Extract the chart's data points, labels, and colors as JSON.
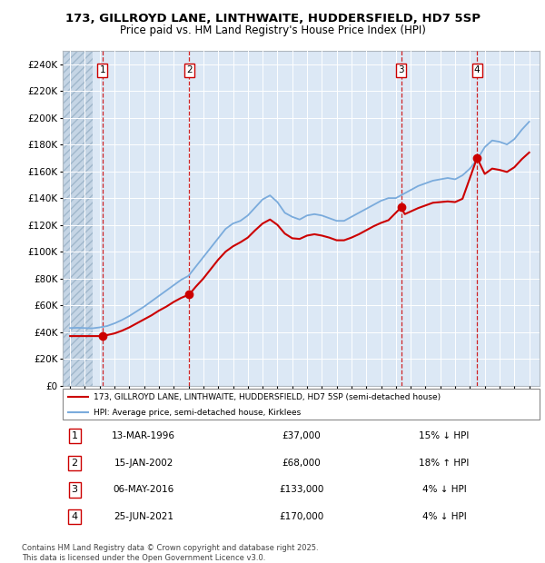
{
  "title_line1": "173, GILLROYD LANE, LINTHWAITE, HUDDERSFIELD, HD7 5SP",
  "title_line2": "Price paid vs. HM Land Registry's House Price Index (HPI)",
  "background_color": "#ffffff",
  "plot_bg_color": "#dce8f5",
  "hatch_bg_color": "#c5d5e5",
  "grid_color": "#ffffff",
  "sale_color": "#cc0000",
  "hpi_color": "#7aabdc",
  "sale_points": [
    {
      "year": 1996.19,
      "price": 37000,
      "label": "1"
    },
    {
      "year": 2002.04,
      "price": 68000,
      "label": "2"
    },
    {
      "year": 2016.35,
      "price": 133000,
      "label": "3"
    },
    {
      "year": 2021.48,
      "price": 170000,
      "label": "4"
    }
  ],
  "xmin": 1993.5,
  "xmax": 2025.7,
  "ymin": 0,
  "ymax": 250000,
  "yticks": [
    0,
    20000,
    40000,
    60000,
    80000,
    100000,
    120000,
    140000,
    160000,
    180000,
    200000,
    220000,
    240000
  ],
  "xticks": [
    1994,
    1995,
    1996,
    1997,
    1998,
    1999,
    2000,
    2001,
    2002,
    2003,
    2004,
    2005,
    2006,
    2007,
    2008,
    2009,
    2010,
    2011,
    2012,
    2013,
    2014,
    2015,
    2016,
    2017,
    2018,
    2019,
    2020,
    2021,
    2022,
    2023,
    2024,
    2025
  ],
  "legend_sale_label": "173, GILLROYD LANE, LINTHWAITE, HUDDERSFIELD, HD7 5SP (semi-detached house)",
  "legend_hpi_label": "HPI: Average price, semi-detached house, Kirklees",
  "table_rows": [
    {
      "num": "1",
      "date": "13-MAR-1996",
      "price": "£37,000",
      "pct": "15% ↓ HPI"
    },
    {
      "num": "2",
      "date": "15-JAN-2002",
      "price": "£68,000",
      "pct": "18% ↑ HPI"
    },
    {
      "num": "3",
      "date": "06-MAY-2016",
      "price": "£133,000",
      "pct": "4% ↓ HPI"
    },
    {
      "num": "4",
      "date": "25-JUN-2021",
      "price": "£170,000",
      "pct": "4% ↓ HPI"
    }
  ],
  "footer": "Contains HM Land Registry data © Crown copyright and database right 2025.\nThis data is licensed under the Open Government Licence v3.0.",
  "hatch_end_year": 1995.5,
  "hpi_years": [
    1994,
    1994.5,
    1995,
    1995.5,
    1996,
    1996.5,
    1997,
    1997.5,
    1998,
    1998.5,
    1999,
    1999.5,
    2000,
    2000.5,
    2001,
    2001.5,
    2002,
    2002.5,
    2003,
    2003.5,
    2004,
    2004.5,
    2005,
    2005.5,
    2006,
    2006.5,
    2007,
    2007.5,
    2008,
    2008.5,
    2009,
    2009.5,
    2010,
    2010.5,
    2011,
    2011.5,
    2012,
    2012.5,
    2013,
    2013.5,
    2014,
    2014.5,
    2015,
    2015.5,
    2016,
    2016.5,
    2017,
    2017.5,
    2018,
    2018.5,
    2019,
    2019.5,
    2020,
    2020.5,
    2021,
    2021.5,
    2022,
    2022.5,
    2023,
    2023.5,
    2024,
    2024.5,
    2025
  ],
  "hpi_values": [
    43000,
    43200,
    43000,
    42800,
    43500,
    44500,
    46500,
    49000,
    52000,
    55500,
    59000,
    63000,
    67000,
    71000,
    75000,
    79000,
    82000,
    89000,
    96000,
    103000,
    110000,
    117000,
    121000,
    123000,
    127000,
    133000,
    139000,
    142000,
    137000,
    129000,
    126000,
    124000,
    127000,
    128000,
    127000,
    125000,
    123000,
    123000,
    126000,
    129000,
    132000,
    135000,
    138000,
    140000,
    140000,
    143000,
    146000,
    149000,
    151000,
    153000,
    154000,
    155000,
    154000,
    157000,
    162000,
    169000,
    178000,
    183000,
    182000,
    180000,
    184000,
    191000,
    197000
  ],
  "sale_years": [
    1994,
    1994.5,
    1995,
    1995.5,
    1996.19,
    1997,
    1997.5,
    1998,
    1998.5,
    1999,
    1999.5,
    2000,
    2000.5,
    2001,
    2001.5,
    2002.04,
    2002.5,
    2003,
    2003.5,
    2004,
    2004.5,
    2005,
    2005.5,
    2006,
    2006.5,
    2007,
    2007.5,
    2008,
    2008.5,
    2009,
    2009.5,
    2010,
    2010.5,
    2011,
    2011.5,
    2012,
    2012.5,
    2013,
    2013.5,
    2014,
    2014.5,
    2015,
    2015.5,
    2016.35,
    2016.6,
    2017,
    2017.5,
    2018,
    2018.5,
    2019,
    2019.5,
    2020,
    2020.5,
    2021.48,
    2022,
    2022.5,
    2023,
    2023.5,
    2024,
    2024.5,
    2025
  ],
  "sale_values": [
    37000,
    37000,
    37000,
    37000,
    37000,
    39000,
    41000,
    43500,
    46500,
    49500,
    52500,
    56000,
    59000,
    62500,
    65500,
    68000,
    74000,
    80000,
    87000,
    94000,
    100000,
    104000,
    107000,
    110500,
    116000,
    121000,
    124000,
    120000,
    113500,
    110000,
    109500,
    112000,
    113000,
    112000,
    110500,
    108500,
    108500,
    110500,
    113000,
    116000,
    119000,
    121500,
    123500,
    133000,
    128000,
    130000,
    132500,
    134500,
    136500,
    137000,
    137500,
    137000,
    139500,
    170000,
    158000,
    162000,
    161000,
    159500,
    163000,
    169000,
    174000
  ]
}
